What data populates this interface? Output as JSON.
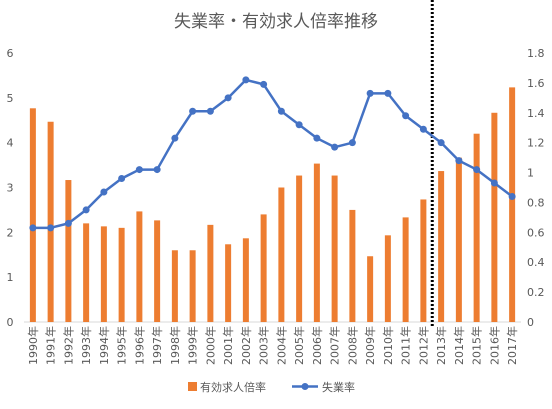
{
  "chart_data": {
    "type": "bar+line",
    "title": "失業率・有効求人倍率推移",
    "categories": [
      "1990年",
      "1991年",
      "1992年",
      "1993年",
      "1994年",
      "1995年",
      "1996年",
      "1997年",
      "1998年",
      "1999年",
      "2000年",
      "2001年",
      "2002年",
      "2003年",
      "2004年",
      "2005年",
      "2006年",
      "2007年",
      "2008年",
      "2009年",
      "2010年",
      "2011年",
      "2012年",
      "2013年",
      "2014年",
      "2015年",
      "2016年",
      "2017年"
    ],
    "series": [
      {
        "name": "有効求人倍率",
        "type": "bar",
        "axis": "right",
        "color": "#ED7D31",
        "values": [
          1.43,
          1.34,
          0.95,
          0.66,
          0.64,
          0.63,
          0.74,
          0.68,
          0.48,
          0.48,
          0.65,
          0.52,
          0.56,
          0.72,
          0.9,
          0.98,
          1.06,
          0.98,
          0.75,
          0.44,
          0.58,
          0.7,
          0.82,
          1.01,
          1.1,
          1.26,
          1.4,
          1.57
        ]
      },
      {
        "name": "失業率",
        "type": "line",
        "axis": "left",
        "color": "#4472C4",
        "values": [
          2.1,
          2.1,
          2.2,
          2.5,
          2.9,
          3.2,
          3.4,
          3.4,
          4.1,
          4.7,
          4.7,
          5.0,
          5.4,
          5.3,
          4.7,
          4.4,
          4.1,
          3.9,
          4.0,
          5.1,
          5.1,
          4.6,
          4.3,
          4.0,
          3.6,
          3.4,
          3.1,
          2.8
        ]
      }
    ],
    "left_axis": {
      "ylim": [
        0,
        6
      ],
      "ticks": [
        "0",
        "1",
        "2",
        "3",
        "4",
        "5",
        "6"
      ]
    },
    "right_axis": {
      "ylim": [
        0,
        1.8
      ],
      "ticks": [
        "0",
        "0.2",
        "0.4",
        "0.6",
        "0.8",
        "1",
        "1.2",
        "1.4",
        "1.6",
        "1.8"
      ]
    },
    "grid": false,
    "legend_position": "bottom",
    "annotation": {
      "type": "dotted-vertical-line",
      "between": [
        "2012年",
        "2013年"
      ]
    }
  }
}
